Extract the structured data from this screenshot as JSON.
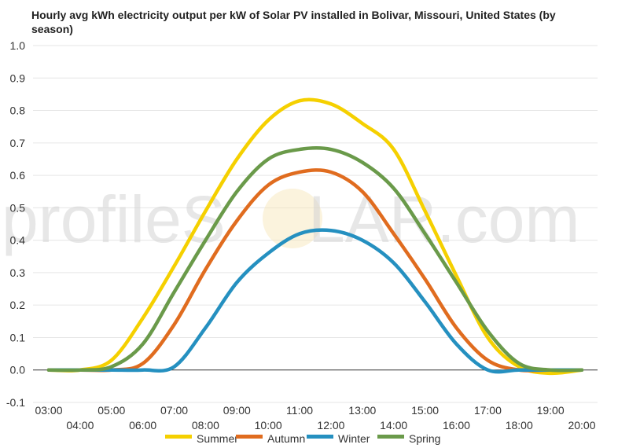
{
  "watermark": {
    "left": "profileS",
    "right": "LAR.com"
  },
  "chart_data": {
    "type": "line",
    "title": "Hourly avg kWh electricity output per kW of Solar PV installed in Bolivar, Missouri, United States (by season)",
    "title_lines": [
      "Hourly avg kWh electricity output per kW of Solar PV installed in Bolivar, Missouri, United States (by",
      "season)"
    ],
    "xlabel": "",
    "ylabel": "",
    "ylim": [
      -0.1,
      1.0
    ],
    "yticks": [
      "1.0",
      "0.9",
      "0.8",
      "0.7",
      "0.6",
      "0.5",
      "0.4",
      "0.3",
      "0.2",
      "0.1",
      "0.0",
      "-0.1"
    ],
    "ytick_values": [
      1.0,
      0.9,
      0.8,
      0.7,
      0.6,
      0.5,
      0.4,
      0.3,
      0.2,
      0.1,
      0.0,
      -0.1
    ],
    "x": [
      "03:00",
      "04:00",
      "05:00",
      "06:00",
      "07:00",
      "08:00",
      "09:00",
      "10:00",
      "11:00",
      "12:00",
      "13:00",
      "14:00",
      "15:00",
      "16:00",
      "17:00",
      "18:00",
      "19:00",
      "20:00"
    ],
    "grid": true,
    "legend_position": "bottom",
    "series": [
      {
        "name": "Summer",
        "color": "#f5d000",
        "values": [
          0.0,
          0.0,
          0.03,
          0.16,
          0.32,
          0.49,
          0.65,
          0.77,
          0.83,
          0.82,
          0.76,
          0.68,
          0.49,
          0.29,
          0.1,
          0.01,
          -0.01,
          0.0
        ]
      },
      {
        "name": "Autumn",
        "color": "#e06c1f",
        "values": [
          0.0,
          0.0,
          0.0,
          0.02,
          0.14,
          0.31,
          0.46,
          0.57,
          0.61,
          0.61,
          0.55,
          0.42,
          0.28,
          0.13,
          0.03,
          0.0,
          0.0,
          0.0
        ]
      },
      {
        "name": "Winter",
        "color": "#2590c0",
        "values": [
          0.0,
          0.0,
          0.0,
          0.0,
          0.01,
          0.13,
          0.27,
          0.36,
          0.42,
          0.43,
          0.4,
          0.33,
          0.21,
          0.08,
          0.0,
          0.0,
          0.0,
          0.0
        ]
      },
      {
        "name": "Spring",
        "color": "#6a9a4a",
        "values": [
          0.0,
          0.0,
          0.01,
          0.08,
          0.24,
          0.4,
          0.55,
          0.65,
          0.68,
          0.68,
          0.64,
          0.56,
          0.42,
          0.27,
          0.12,
          0.02,
          0.0,
          0.0
        ]
      }
    ]
  }
}
